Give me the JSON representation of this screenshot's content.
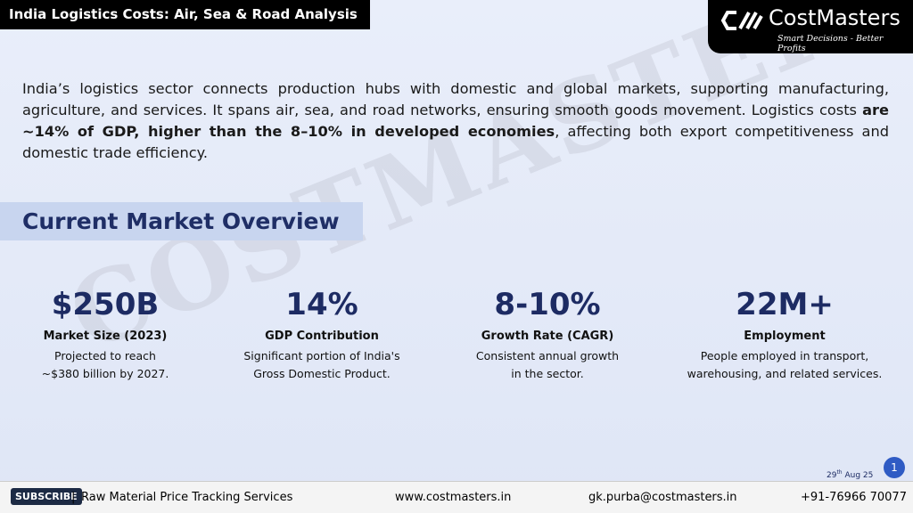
{
  "header": {
    "title": "India Logistics Costs: Air, Sea & Road Analysis"
  },
  "logo": {
    "name": "CostMasters",
    "tagline": "Smart Decisions - Better Profits"
  },
  "intro": {
    "before": "India’s logistics sector connects production hubs with domestic and global markets, supporting manufacturing, agriculture, and services. It spans air, sea, and road networks, ensuring smooth goods movement. Logistics costs ",
    "bold": "are ~14% of GDP, higher than the 8–10% in developed economies",
    "after": ", affecting both export competitiveness and domestic trade efficiency."
  },
  "section": {
    "title": "Current Market Overview"
  },
  "watermark": "COSTMASTERS",
  "stats": [
    {
      "value": "$250B",
      "label": "Market Size (2023)",
      "description": [
        "Projected to reach",
        "~$380 billion by 2027."
      ]
    },
    {
      "value": "14%",
      "label": "GDP Contribution",
      "description": [
        "Significant portion of India's",
        "Gross Domestic Product."
      ]
    },
    {
      "value": "8-10%",
      "label": "Growth Rate (CAGR)",
      "description": [
        "Consistent annual growth",
        "in the sector."
      ]
    },
    {
      "value": "22M+",
      "label": "Employment",
      "description": [
        "People employed in transport,",
        "warehousing, and related services."
      ]
    }
  ],
  "date": {
    "day": "29",
    "suffix": "th",
    "rest": "Aug 25"
  },
  "page_number": "1",
  "footer": {
    "subscribe": "SUBSCRIBE",
    "separator": "|",
    "service": "Raw Material Price Tracking Services",
    "website": "www.costmasters.in",
    "email": "gk.purba@costmasters.in",
    "phone": "+91-76966 70077"
  }
}
